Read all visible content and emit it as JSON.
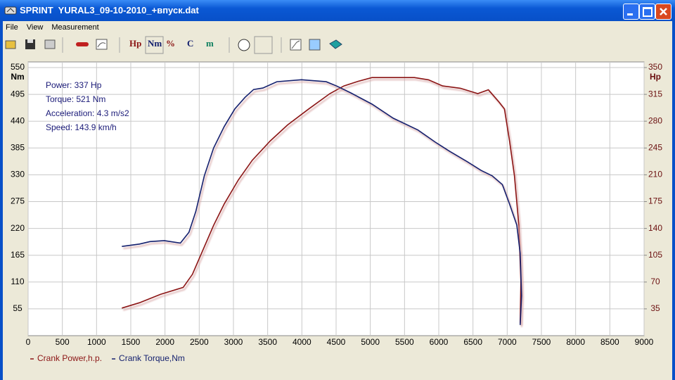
{
  "window": {
    "title": "SPRINT  YURAL3_09-10-2010_+впуск.dat"
  },
  "menu": [
    "File",
    "View",
    "Measurement"
  ],
  "toolbar": [
    "Hp",
    "Nm",
    "%",
    "C",
    "m"
  ],
  "chart_data": {
    "type": "line",
    "info": [
      "Power: 337 Hp",
      "Torque: 521 Nm",
      "Acceleration: 4.3 m/s2",
      "Speed: 143.9 km/h"
    ],
    "y_label": "Nm",
    "y2_label": "Hp",
    "xlim": [
      0,
      9000
    ],
    "xticks": [
      0,
      500,
      1000,
      1500,
      2000,
      2500,
      3000,
      3500,
      4000,
      4500,
      5000,
      5500,
      6000,
      6500,
      7000,
      7500,
      8000,
      8500,
      9000
    ],
    "ylim": [
      0,
      550
    ],
    "yticks": [
      55,
      110,
      165,
      220,
      275,
      330,
      385,
      440,
      495,
      550
    ],
    "y2lim": [
      0,
      350
    ],
    "y2ticks": [
      35,
      70,
      105,
      140,
      175,
      210,
      245,
      280,
      315,
      350
    ],
    "grid": true,
    "series": [
      {
        "name": "Crank Power,h.p.",
        "color": "#8b1414",
        "axis": "y2",
        "x": [
          1370,
          1627,
          1935,
          2265,
          2400,
          2555,
          2710,
          2865,
          3070,
          3275,
          3535,
          3790,
          4100,
          4410,
          4615,
          4820,
          5025,
          5335,
          5645,
          5850,
          6055,
          6315,
          6570,
          6725,
          6880,
          6960,
          7035,
          7105,
          7170,
          7200,
          7190
        ],
        "values": [
          36,
          43,
          54,
          63,
          80,
          112,
          144,
          172,
          203,
          229,
          254,
          275,
          296,
          316,
          326,
          332,
          337,
          337,
          337,
          334,
          326,
          323,
          316,
          321,
          305,
          296,
          254,
          209,
          144,
          71,
          16
        ]
      },
      {
        "name": "Crank Torque,Nm",
        "color": "#14206e",
        "x": [
          1370,
          1627,
          1780,
          1990,
          2225,
          2350,
          2450,
          2575,
          2710,
          2865,
          3020,
          3170,
          3295,
          3430,
          3635,
          3995,
          4355,
          4510,
          4715,
          5025,
          5335,
          5695,
          5950,
          6160,
          6415,
          6620,
          6780,
          6930,
          7035,
          7140,
          7190,
          7210,
          7190
        ],
        "values": [
          183,
          188,
          193,
          195,
          190,
          212,
          255,
          328,
          385,
          429,
          465,
          489,
          505,
          508,
          521,
          525,
          521,
          512,
          498,
          475,
          446,
          422,
          397,
          378,
          357,
          339,
          328,
          310,
          270,
          227,
          169,
          82,
          22
        ]
      }
    ]
  }
}
